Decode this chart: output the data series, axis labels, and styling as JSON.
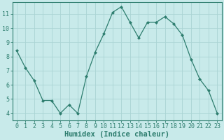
{
  "x": [
    0,
    1,
    2,
    3,
    4,
    5,
    6,
    7,
    8,
    9,
    10,
    11,
    12,
    13,
    14,
    15,
    16,
    17,
    18,
    19,
    20,
    21,
    22,
    23
  ],
  "y": [
    8.4,
    7.2,
    6.3,
    4.9,
    4.9,
    4.0,
    4.6,
    4.0,
    6.6,
    8.3,
    9.6,
    11.1,
    11.5,
    10.4,
    9.3,
    10.4,
    10.4,
    10.8,
    10.3,
    9.5,
    7.8,
    6.4,
    5.6,
    4.0
  ],
  "line_color": "#2d7d6e",
  "marker": "D",
  "marker_size": 2.0,
  "bg_color": "#c8eaea",
  "grid_color": "#aad4d4",
  "xlabel": "Humidex (Indice chaleur)",
  "ylim": [
    3.5,
    11.8
  ],
  "xlim": [
    -0.5,
    23.5
  ],
  "yticks": [
    4,
    5,
    6,
    7,
    8,
    9,
    10,
    11
  ],
  "xticks": [
    0,
    1,
    2,
    3,
    4,
    5,
    6,
    7,
    8,
    9,
    10,
    11,
    12,
    13,
    14,
    15,
    16,
    17,
    18,
    19,
    20,
    21,
    22,
    23
  ],
  "tick_label_fontsize": 6,
  "xlabel_fontsize": 7.5
}
